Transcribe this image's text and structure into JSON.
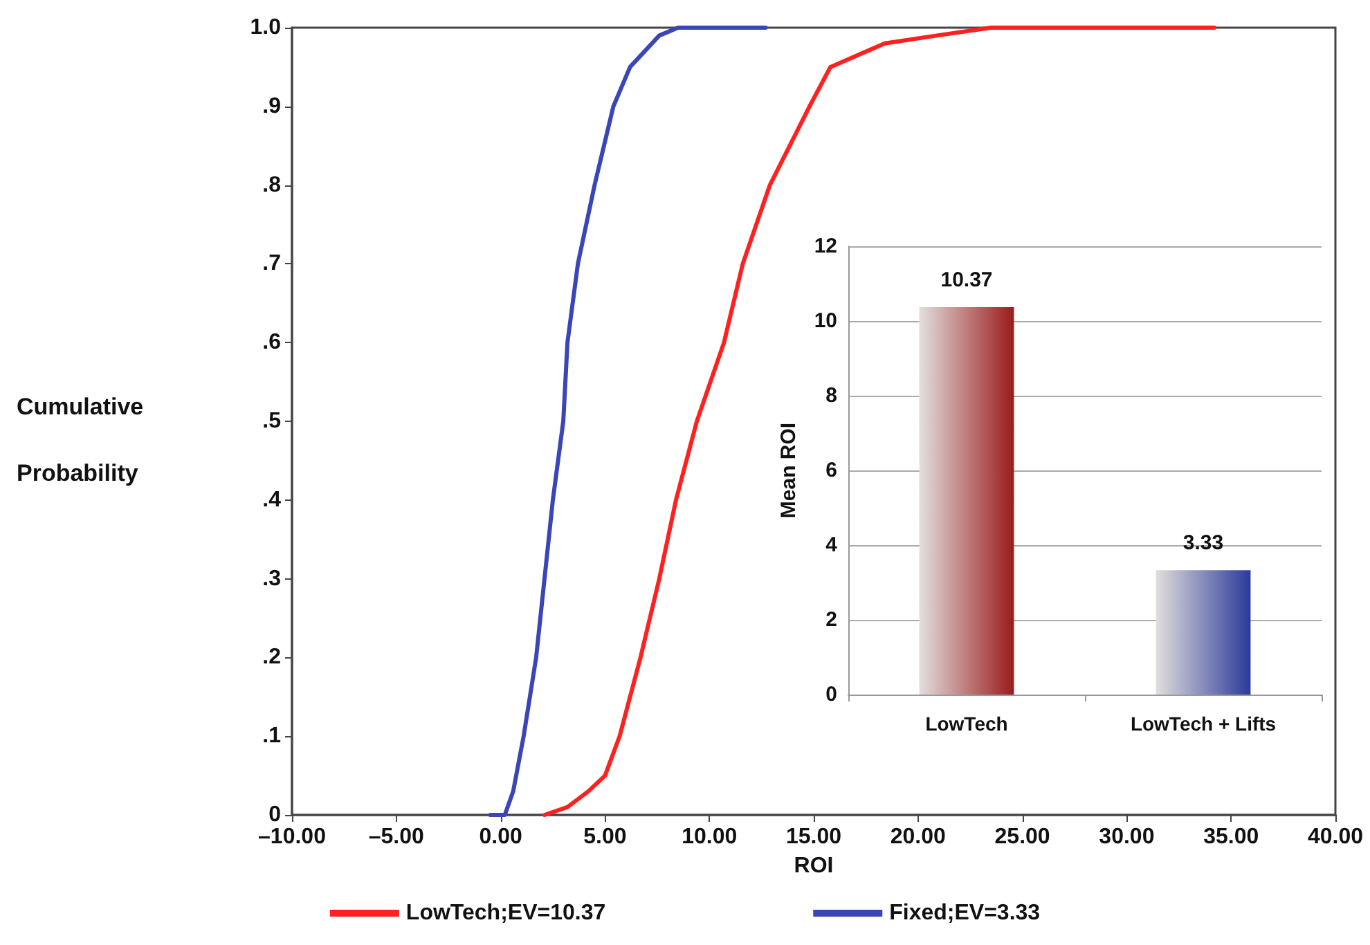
{
  "chart_data": [
    {
      "type": "line",
      "xlabel": "ROI",
      "ylabel": "Cumulative Probability",
      "xlim": [
        -10,
        40
      ],
      "ylim": [
        0,
        1
      ],
      "xticks": [
        {
          "value": -10,
          "label": "–10.00"
        },
        {
          "value": -5,
          "label": "–5.00"
        },
        {
          "value": 0,
          "label": "0.00"
        },
        {
          "value": 5,
          "label": "5.00"
        },
        {
          "value": 10,
          "label": "10.00"
        },
        {
          "value": 15,
          "label": "15.00"
        },
        {
          "value": 20,
          "label": "20.00"
        },
        {
          "value": 25,
          "label": "25.00"
        },
        {
          "value": 30,
          "label": "30.00"
        },
        {
          "value": 35,
          "label": "35.00"
        },
        {
          "value": 40,
          "label": "40.00"
        }
      ],
      "yticks": [
        0,
        {
          "value": 0.1,
          "label": ".1"
        },
        {
          "value": 0.2,
          "label": ".2"
        },
        {
          "value": 0.3,
          "label": ".3"
        },
        {
          "value": 0.4,
          "label": ".4"
        },
        {
          "value": 0.5,
          "label": ".5"
        },
        {
          "value": 0.6,
          "label": ".6"
        },
        {
          "value": 0.7,
          "label": ".7"
        },
        {
          "value": 0.8,
          "label": ".8"
        },
        {
          "value": 0.9,
          "label": ".9"
        },
        {
          "value": 1,
          "label": "1.0"
        }
      ],
      "grid": false,
      "legend": "bottom",
      "marker": "none",
      "line_style": "solid",
      "series": [
        {
          "name": "LowTech;EV=10.37",
          "color": "#ff2020",
          "x": [
            2.1,
            3.2,
            4.2,
            5.0,
            5.7,
            6.7,
            7.6,
            8.4,
            9.4,
            10.7,
            11.6,
            12.9,
            14.8,
            15.8,
            18.4,
            20.9,
            23.5,
            34.2
          ],
          "values": [
            0,
            0.01,
            0.03,
            0.05,
            0.1,
            0.2,
            0.3,
            0.4,
            0.5,
            0.6,
            0.7,
            0.8,
            0.9,
            0.95,
            0.98,
            0.99,
            1,
            1
          ]
        },
        {
          "name": "Fixed;EV=3.33",
          "color": "#3a45b8",
          "x": [
            -0.5,
            0.2,
            0.6,
            1.1,
            1.7,
            2.1,
            2.5,
            3.0,
            3.2,
            3.7,
            4.5,
            5.4,
            6.2,
            7.6,
            8.5,
            12.7
          ],
          "values": [
            0,
            0,
            0.03,
            0.1,
            0.2,
            0.3,
            0.4,
            0.5,
            0.6,
            0.7,
            0.8,
            0.9,
            0.95,
            0.99,
            1,
            1
          ]
        }
      ]
    },
    {
      "type": "bar",
      "ylabel": "Mean ROI",
      "categories": [
        "LowTech",
        "LowTech + Lifts"
      ],
      "values": [
        10.37,
        3.33
      ],
      "colors": [
        "#9b1b1b",
        "#2b3a9a"
      ],
      "ylim": [
        0,
        12
      ],
      "yticks": [
        0,
        2,
        4,
        6,
        8,
        10,
        12
      ],
      "grid": "y",
      "data_labels": true
    }
  ]
}
